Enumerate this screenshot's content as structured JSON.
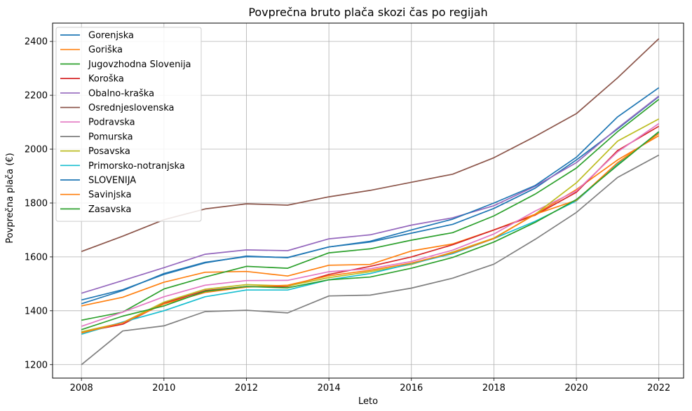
{
  "chart_data": {
    "type": "line",
    "title": "Povprečna bruto plača skozi čas po regijah",
    "xlabel": "Leto",
    "ylabel": "Povprečna plača (€)",
    "xlim": [
      2007.3,
      2022.6
    ],
    "ylim": [
      1150,
      2468
    ],
    "xticks": [
      2008,
      2010,
      2012,
      2014,
      2016,
      2018,
      2020,
      2022
    ],
    "yticks": [
      1200,
      1400,
      1600,
      1800,
      2000,
      2200,
      2400
    ],
    "grid": true,
    "legend_position": "upper-left",
    "x": [
      2008,
      2009,
      2010,
      2011,
      2012,
      2013,
      2014,
      2015,
      2016,
      2017,
      2018,
      2019,
      2020,
      2021,
      2022
    ],
    "series": [
      {
        "name": "Gorenjska",
        "color": "#1f77b4",
        "values": [
          1426,
          1475,
          1538,
          1580,
          1601,
          1598,
          1637,
          1655,
          1688,
          1721,
          1780,
          1855,
          1960,
          2075,
          2195
        ]
      },
      {
        "name": "Goriška",
        "color": "#ff7f0e",
        "values": [
          1418,
          1450,
          1506,
          1543,
          1546,
          1529,
          1569,
          1572,
          1622,
          1648,
          1700,
          1758,
          1850,
          1960,
          2050
        ]
      },
      {
        "name": "Jugovzhodna Slovenija",
        "color": "#2ca02c",
        "values": [
          1365,
          1395,
          1481,
          1525,
          1565,
          1558,
          1615,
          1630,
          1662,
          1690,
          1752,
          1833,
          1930,
          2065,
          2185
        ]
      },
      {
        "name": "Koroška",
        "color": "#d62728",
        "values": [
          1320,
          1350,
          1428,
          1475,
          1490,
          1490,
          1535,
          1565,
          1600,
          1645,
          1700,
          1755,
          1840,
          1995,
          2085
        ]
      },
      {
        "name": "Obalno-kraška",
        "color": "#9467bd",
        "values": [
          1465,
          1512,
          1560,
          1610,
          1626,
          1623,
          1667,
          1682,
          1718,
          1745,
          1790,
          1862,
          1950,
          2078,
          2197
        ]
      },
      {
        "name": "Osrednjeslovenska",
        "color": "#8c564b",
        "values": [
          1620,
          1677,
          1738,
          1778,
          1797,
          1792,
          1823,
          1847,
          1877,
          1907,
          1968,
          2047,
          2132,
          2265,
          2410
        ]
      },
      {
        "name": "Podravska",
        "color": "#e377c2",
        "values": [
          1342,
          1395,
          1452,
          1495,
          1512,
          1513,
          1545,
          1556,
          1583,
          1625,
          1685,
          1770,
          1845,
          1990,
          2095
        ]
      },
      {
        "name": "Pomurska",
        "color": "#7f7f7f",
        "values": [
          1200,
          1325,
          1344,
          1397,
          1402,
          1392,
          1455,
          1458,
          1484,
          1521,
          1573,
          1665,
          1765,
          1895,
          1978
        ]
      },
      {
        "name": "Posavska",
        "color": "#bcbd22",
        "values": [
          1322,
          1356,
          1432,
          1480,
          1497,
          1492,
          1523,
          1545,
          1572,
          1618,
          1670,
          1758,
          1875,
          2030,
          2112
        ]
      },
      {
        "name": "Primorsko-notranjska",
        "color": "#17becf",
        "values": [
          1313,
          1358,
          1400,
          1452,
          1477,
          1477,
          1515,
          1538,
          1575,
          1612,
          1668,
          1732,
          1808,
          1945,
          2063
        ]
      },
      {
        "name": "SLOVENIJA",
        "color": "#1f77b4",
        "values": [
          1440,
          1478,
          1535,
          1578,
          1603,
          1597,
          1637,
          1658,
          1700,
          1740,
          1800,
          1865,
          1970,
          2120,
          2228
        ]
      },
      {
        "name": "Savinjska",
        "color": "#ff7f0e",
        "values": [
          1318,
          1355,
          1425,
          1468,
          1488,
          1495,
          1530,
          1550,
          1577,
          1615,
          1668,
          1758,
          1810,
          1950,
          2058
        ]
      },
      {
        "name": "Zasavska",
        "color": "#2ca02c",
        "values": [
          1330,
          1380,
          1418,
          1472,
          1490,
          1485,
          1515,
          1525,
          1558,
          1598,
          1655,
          1728,
          1813,
          1940,
          2065
        ]
      }
    ]
  }
}
